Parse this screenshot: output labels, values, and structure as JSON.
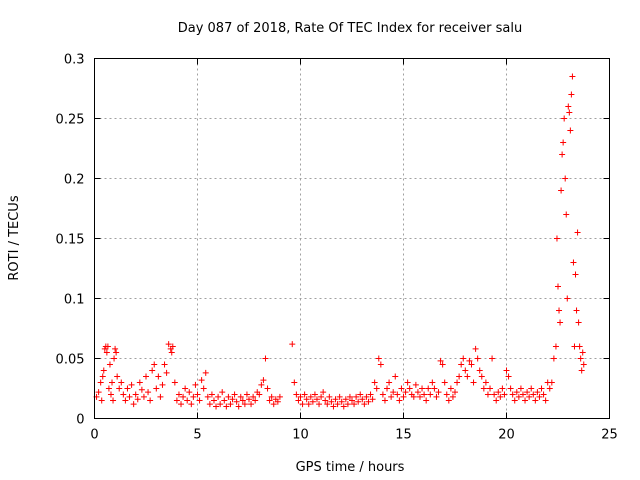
{
  "chart_data": {
    "type": "scatter",
    "title": "Day 087 of 2018, Rate Of TEC Index for receiver salu",
    "xlabel": "GPS time / hours",
    "ylabel": "ROTI / TECUs",
    "xlim": [
      0,
      25
    ],
    "ylim": [
      0,
      0.3
    ],
    "xticks": [
      0,
      5,
      10,
      15,
      20,
      25
    ],
    "xtick_labels": [
      "0",
      "5",
      "10",
      "15",
      "20",
      "25"
    ],
    "yticks": [
      0,
      0.05,
      0.1,
      0.15,
      0.2,
      0.25,
      0.3
    ],
    "ytick_labels": [
      "0",
      "0.05",
      "0.1",
      "0.15",
      "0.2",
      "0.25",
      "0.3"
    ],
    "grid": true,
    "marker": "+",
    "color": "#ff0000",
    "series": [
      {
        "name": "ROTI",
        "points": [
          [
            0.1,
            0.018
          ],
          [
            0.2,
            0.022
          ],
          [
            0.3,
            0.03
          ],
          [
            0.35,
            0.015
          ],
          [
            0.4,
            0.035
          ],
          [
            0.45,
            0.04
          ],
          [
            0.5,
            0.058
          ],
          [
            0.55,
            0.06
          ],
          [
            0.6,
            0.055
          ],
          [
            0.65,
            0.06
          ],
          [
            0.7,
            0.025
          ],
          [
            0.75,
            0.045
          ],
          [
            0.8,
            0.02
          ],
          [
            0.85,
            0.03
          ],
          [
            0.9,
            0.015
          ],
          [
            0.95,
            0.05
          ],
          [
            1.0,
            0.058
          ],
          [
            1.05,
            0.055
          ],
          [
            1.1,
            0.035
          ],
          [
            1.2,
            0.025
          ],
          [
            1.3,
            0.03
          ],
          [
            1.4,
            0.02
          ],
          [
            1.5,
            0.015
          ],
          [
            1.6,
            0.025
          ],
          [
            1.7,
            0.018
          ],
          [
            1.8,
            0.028
          ],
          [
            1.9,
            0.012
          ],
          [
            2.0,
            0.02
          ],
          [
            2.1,
            0.016
          ],
          [
            2.2,
            0.03
          ],
          [
            2.3,
            0.024
          ],
          [
            2.4,
            0.018
          ],
          [
            2.5,
            0.035
          ],
          [
            2.6,
            0.022
          ],
          [
            2.7,
            0.015
          ],
          [
            2.8,
            0.04
          ],
          [
            2.9,
            0.045
          ],
          [
            3.0,
            0.025
          ],
          [
            3.1,
            0.035
          ],
          [
            3.2,
            0.018
          ],
          [
            3.3,
            0.028
          ],
          [
            3.4,
            0.045
          ],
          [
            3.5,
            0.038
          ],
          [
            3.6,
            0.062
          ],
          [
            3.7,
            0.058
          ],
          [
            3.75,
            0.055
          ],
          [
            3.8,
            0.06
          ],
          [
            3.9,
            0.03
          ],
          [
            4.0,
            0.015
          ],
          [
            4.1,
            0.02
          ],
          [
            4.2,
            0.012
          ],
          [
            4.3,
            0.018
          ],
          [
            4.4,
            0.025
          ],
          [
            4.5,
            0.015
          ],
          [
            4.6,
            0.022
          ],
          [
            4.7,
            0.012
          ],
          [
            4.8,
            0.018
          ],
          [
            4.9,
            0.028
          ],
          [
            5.0,
            0.02
          ],
          [
            5.1,
            0.015
          ],
          [
            5.2,
            0.032
          ],
          [
            5.3,
            0.025
          ],
          [
            5.4,
            0.038
          ],
          [
            5.5,
            0.018
          ],
          [
            5.6,
            0.012
          ],
          [
            5.7,
            0.02
          ],
          [
            5.8,
            0.015
          ],
          [
            5.9,
            0.01
          ],
          [
            6.0,
            0.018
          ],
          [
            6.1,
            0.012
          ],
          [
            6.2,
            0.022
          ],
          [
            6.3,
            0.015
          ],
          [
            6.4,
            0.01
          ],
          [
            6.5,
            0.018
          ],
          [
            6.6,
            0.012
          ],
          [
            6.7,
            0.016
          ],
          [
            6.8,
            0.02
          ],
          [
            6.9,
            0.014
          ],
          [
            7.0,
            0.01
          ],
          [
            7.1,
            0.018
          ],
          [
            7.2,
            0.015
          ],
          [
            7.3,
            0.012
          ],
          [
            7.4,
            0.02
          ],
          [
            7.5,
            0.016
          ],
          [
            7.6,
            0.012
          ],
          [
            7.7,
            0.018
          ],
          [
            7.8,
            0.015
          ],
          [
            7.9,
            0.022
          ],
          [
            8.0,
            0.02
          ],
          [
            8.1,
            0.028
          ],
          [
            8.2,
            0.032
          ],
          [
            8.3,
            0.05
          ],
          [
            8.4,
            0.025
          ],
          [
            8.5,
            0.015
          ],
          [
            8.6,
            0.018
          ],
          [
            8.7,
            0.012
          ],
          [
            8.8,
            0.016
          ],
          [
            8.9,
            0.014
          ],
          [
            9.0,
            0.018
          ],
          [
            9.6,
            0.062
          ],
          [
            9.7,
            0.03
          ],
          [
            9.8,
            0.02
          ],
          [
            9.9,
            0.015
          ],
          [
            10.0,
            0.018
          ],
          [
            10.1,
            0.012
          ],
          [
            10.2,
            0.02
          ],
          [
            10.3,
            0.016
          ],
          [
            10.4,
            0.012
          ],
          [
            10.5,
            0.018
          ],
          [
            10.6,
            0.014
          ],
          [
            10.7,
            0.02
          ],
          [
            10.8,
            0.016
          ],
          [
            10.9,
            0.012
          ],
          [
            11.0,
            0.018
          ],
          [
            11.1,
            0.022
          ],
          [
            11.2,
            0.015
          ],
          [
            11.3,
            0.012
          ],
          [
            11.4,
            0.018
          ],
          [
            11.5,
            0.014
          ],
          [
            11.6,
            0.01
          ],
          [
            11.7,
            0.016
          ],
          [
            11.8,
            0.012
          ],
          [
            11.9,
            0.018
          ],
          [
            12.0,
            0.014
          ],
          [
            12.1,
            0.01
          ],
          [
            12.2,
            0.016
          ],
          [
            12.3,
            0.012
          ],
          [
            12.4,
            0.018
          ],
          [
            12.5,
            0.015
          ],
          [
            12.6,
            0.012
          ],
          [
            12.7,
            0.018
          ],
          [
            12.8,
            0.014
          ],
          [
            12.9,
            0.02
          ],
          [
            13.0,
            0.016
          ],
          [
            13.1,
            0.012
          ],
          [
            13.2,
            0.018
          ],
          [
            13.3,
            0.014
          ],
          [
            13.4,
            0.02
          ],
          [
            13.5,
            0.016
          ],
          [
            13.6,
            0.03
          ],
          [
            13.7,
            0.025
          ],
          [
            13.8,
            0.05
          ],
          [
            13.9,
            0.045
          ],
          [
            14.0,
            0.02
          ],
          [
            14.1,
            0.015
          ],
          [
            14.2,
            0.025
          ],
          [
            14.3,
            0.03
          ],
          [
            14.4,
            0.018
          ],
          [
            14.5,
            0.022
          ],
          [
            14.6,
            0.035
          ],
          [
            14.7,
            0.02
          ],
          [
            14.8,
            0.015
          ],
          [
            14.9,
            0.025
          ],
          [
            15.0,
            0.018
          ],
          [
            15.1,
            0.022
          ],
          [
            15.2,
            0.03
          ],
          [
            15.3,
            0.025
          ],
          [
            15.4,
            0.02
          ],
          [
            15.5,
            0.018
          ],
          [
            15.6,
            0.028
          ],
          [
            15.7,
            0.022
          ],
          [
            15.8,
            0.018
          ],
          [
            15.9,
            0.025
          ],
          [
            16.0,
            0.02
          ],
          [
            16.1,
            0.015
          ],
          [
            16.2,
            0.025
          ],
          [
            16.3,
            0.02
          ],
          [
            16.4,
            0.03
          ],
          [
            16.5,
            0.025
          ],
          [
            16.6,
            0.018
          ],
          [
            16.7,
            0.022
          ],
          [
            16.8,
            0.048
          ],
          [
            16.9,
            0.045
          ],
          [
            17.0,
            0.03
          ],
          [
            17.1,
            0.02
          ],
          [
            17.2,
            0.015
          ],
          [
            17.3,
            0.025
          ],
          [
            17.4,
            0.018
          ],
          [
            17.5,
            0.022
          ],
          [
            17.6,
            0.03
          ],
          [
            17.7,
            0.035
          ],
          [
            17.8,
            0.045
          ],
          [
            17.9,
            0.05
          ],
          [
            18.0,
            0.04
          ],
          [
            18.1,
            0.035
          ],
          [
            18.2,
            0.048
          ],
          [
            18.3,
            0.045
          ],
          [
            18.4,
            0.03
          ],
          [
            18.5,
            0.058
          ],
          [
            18.6,
            0.05
          ],
          [
            18.7,
            0.04
          ],
          [
            18.8,
            0.035
          ],
          [
            18.9,
            0.025
          ],
          [
            19.0,
            0.03
          ],
          [
            19.1,
            0.02
          ],
          [
            19.2,
            0.025
          ],
          [
            19.3,
            0.05
          ],
          [
            19.4,
            0.02
          ],
          [
            19.5,
            0.015
          ],
          [
            19.6,
            0.022
          ],
          [
            19.7,
            0.018
          ],
          [
            19.8,
            0.025
          ],
          [
            19.9,
            0.02
          ],
          [
            20.0,
            0.04
          ],
          [
            20.1,
            0.035
          ],
          [
            20.2,
            0.025
          ],
          [
            20.3,
            0.02
          ],
          [
            20.4,
            0.015
          ],
          [
            20.5,
            0.022
          ],
          [
            20.6,
            0.018
          ],
          [
            20.7,
            0.025
          ],
          [
            20.8,
            0.02
          ],
          [
            20.9,
            0.015
          ],
          [
            21.0,
            0.022
          ],
          [
            21.1,
            0.018
          ],
          [
            21.2,
            0.025
          ],
          [
            21.3,
            0.02
          ],
          [
            21.4,
            0.015
          ],
          [
            21.5,
            0.022
          ],
          [
            21.6,
            0.018
          ],
          [
            21.7,
            0.025
          ],
          [
            21.8,
            0.02
          ],
          [
            21.9,
            0.015
          ],
          [
            22.0,
            0.03
          ],
          [
            22.1,
            0.025
          ],
          [
            22.2,
            0.03
          ],
          [
            22.3,
            0.05
          ],
          [
            22.4,
            0.06
          ],
          [
            22.45,
            0.15
          ],
          [
            22.5,
            0.11
          ],
          [
            22.55,
            0.09
          ],
          [
            22.6,
            0.08
          ],
          [
            22.65,
            0.19
          ],
          [
            22.7,
            0.22
          ],
          [
            22.75,
            0.23
          ],
          [
            22.8,
            0.25
          ],
          [
            22.85,
            0.2
          ],
          [
            22.9,
            0.17
          ],
          [
            22.95,
            0.1
          ],
          [
            23.0,
            0.26
          ],
          [
            23.05,
            0.255
          ],
          [
            23.1,
            0.24
          ],
          [
            23.15,
            0.27
          ],
          [
            23.2,
            0.285
          ],
          [
            23.25,
            0.13
          ],
          [
            23.3,
            0.06
          ],
          [
            23.35,
            0.12
          ],
          [
            23.4,
            0.09
          ],
          [
            23.45,
            0.155
          ],
          [
            23.5,
            0.08
          ],
          [
            23.55,
            0.06
          ],
          [
            23.6,
            0.05
          ],
          [
            23.65,
            0.04
          ],
          [
            23.7,
            0.055
          ],
          [
            23.75,
            0.045
          ]
        ]
      }
    ]
  }
}
